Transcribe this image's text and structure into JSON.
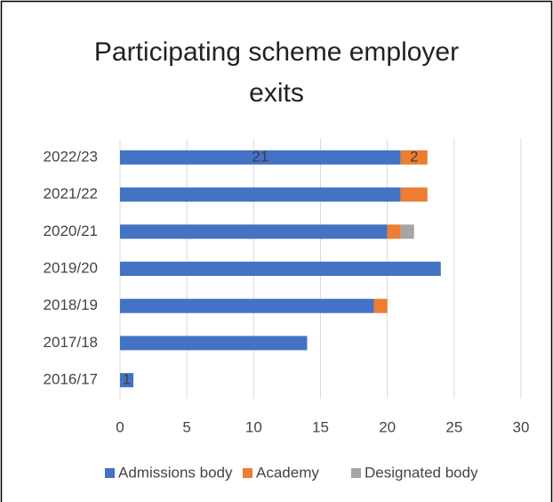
{
  "chart_data": {
    "type": "stacked-bar-horizontal",
    "title": "Participating scheme employer exits",
    "categories": [
      "2022/23",
      "2021/22",
      "2020/21",
      "2019/20",
      "2018/19",
      "2017/18",
      "2016/17"
    ],
    "series": [
      {
        "name": "Admissions body",
        "color": "#4472c4",
        "values": [
          21,
          21,
          20,
          24,
          19,
          14,
          1
        ],
        "value_labels": [
          "21",
          null,
          null,
          null,
          null,
          null,
          "1"
        ]
      },
      {
        "name": "Academy",
        "color": "#ed7d31",
        "values": [
          2,
          2,
          1,
          0,
          1,
          0,
          0
        ],
        "value_labels": [
          "2",
          null,
          null,
          null,
          null,
          null,
          null
        ]
      },
      {
        "name": "Designated body",
        "color": "#a5a5a5",
        "values": [
          0,
          0,
          1,
          0,
          0,
          0,
          0
        ]
      }
    ],
    "xlim": [
      0,
      30
    ],
    "xticks": [
      0,
      5,
      10,
      15,
      20,
      25,
      30
    ],
    "grid": true,
    "legend": "bottom"
  }
}
